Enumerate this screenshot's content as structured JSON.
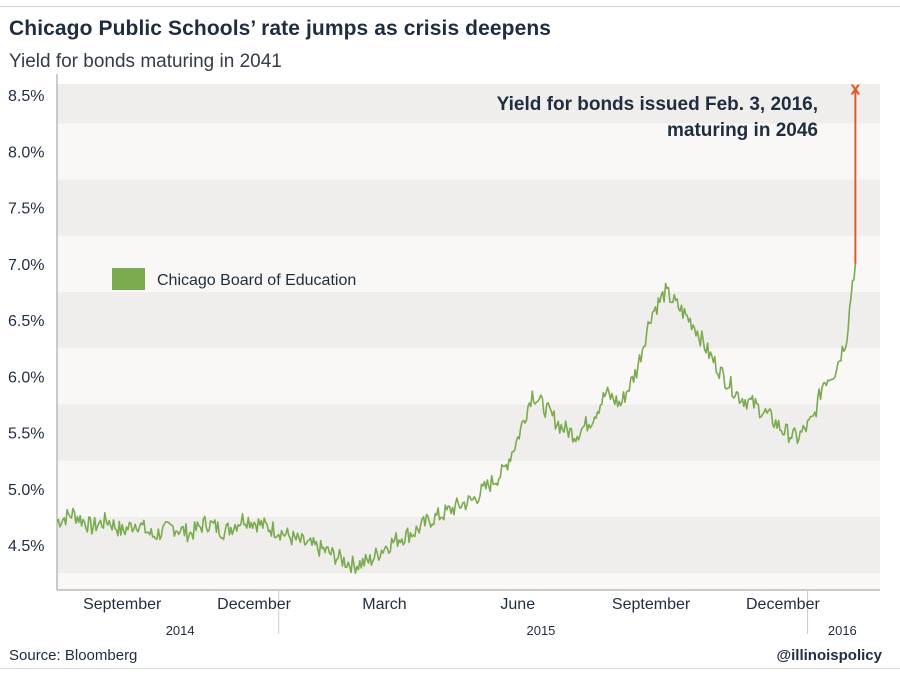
{
  "header": {
    "title": "Chicago Public Schools’ rate jumps as crisis deepens",
    "subtitle": "Yield for bonds maturing in 2041"
  },
  "footer": {
    "source": "Source: Bloomberg",
    "handle": "@illinoispolicy"
  },
  "colors": {
    "series": "#7aab4e",
    "highlight": "#e05a2a",
    "band_dark": "#efeeec",
    "band_light": "#f9f8f6"
  },
  "chart_data": {
    "type": "line",
    "ylim": [
      4.1,
      8.6
    ],
    "y_ticks": [
      "4.5%",
      "5.0%",
      "5.5%",
      "6.0%",
      "6.5%",
      "7.0%",
      "7.5%",
      "8.0%",
      "8.5%"
    ],
    "y_tick_values": [
      4.5,
      5.0,
      5.5,
      6.0,
      6.5,
      7.0,
      7.5,
      8.0,
      8.5
    ],
    "x_domain": [
      "2014-08-01",
      "2016-02-20"
    ],
    "x_ticks": [
      {
        "label": "September",
        "date": "2014-09-15"
      },
      {
        "label": "December",
        "date": "2014-12-15"
      },
      {
        "label": "March",
        "date": "2015-03-15"
      },
      {
        "label": "June",
        "date": "2015-06-15"
      },
      {
        "label": "September",
        "date": "2015-09-15"
      },
      {
        "label": "December",
        "date": "2015-12-15"
      }
    ],
    "year_labels": [
      {
        "label": "2014",
        "date": "2014-10-25"
      },
      {
        "label": "2015",
        "date": "2015-07-01"
      },
      {
        "label": "2016",
        "date": "2016-01-25"
      }
    ],
    "year_dividers": [
      "2015-01-01",
      "2016-01-01"
    ],
    "series": [
      {
        "name": "Chicago Board of Education",
        "points": [
          [
            "2014-08-01",
            4.71
          ],
          [
            "2014-08-12",
            4.78
          ],
          [
            "2014-08-25",
            4.66
          ],
          [
            "2014-09-05",
            4.72
          ],
          [
            "2014-09-15",
            4.62
          ],
          [
            "2014-09-25",
            4.7
          ],
          [
            "2014-10-06",
            4.58
          ],
          [
            "2014-10-20",
            4.66
          ],
          [
            "2014-11-01",
            4.6
          ],
          [
            "2014-11-12",
            4.7
          ],
          [
            "2014-11-25",
            4.62
          ],
          [
            "2014-12-08",
            4.74
          ],
          [
            "2014-12-20",
            4.68
          ],
          [
            "2015-01-02",
            4.62
          ],
          [
            "2015-01-12",
            4.55
          ],
          [
            "2015-01-22",
            4.5
          ],
          [
            "2015-02-02",
            4.45
          ],
          [
            "2015-02-12",
            4.38
          ],
          [
            "2015-02-22",
            4.32
          ],
          [
            "2015-03-05",
            4.36
          ],
          [
            "2015-03-15",
            4.48
          ],
          [
            "2015-03-25",
            4.56
          ],
          [
            "2015-04-05",
            4.62
          ],
          [
            "2015-04-15",
            4.72
          ],
          [
            "2015-04-25",
            4.78
          ],
          [
            "2015-05-05",
            4.85
          ],
          [
            "2015-05-15",
            4.9
          ],
          [
            "2015-05-25",
            5.02
          ],
          [
            "2015-06-05",
            5.15
          ],
          [
            "2015-06-15",
            5.45
          ],
          [
            "2015-06-25",
            5.85
          ],
          [
            "2015-07-05",
            5.7
          ],
          [
            "2015-07-15",
            5.55
          ],
          [
            "2015-07-25",
            5.48
          ],
          [
            "2015-08-05",
            5.62
          ],
          [
            "2015-08-15",
            5.85
          ],
          [
            "2015-08-25",
            5.75
          ],
          [
            "2015-09-05",
            6.05
          ],
          [
            "2015-09-15",
            6.55
          ],
          [
            "2015-09-25",
            6.75
          ],
          [
            "2015-10-05",
            6.6
          ],
          [
            "2015-10-15",
            6.45
          ],
          [
            "2015-10-25",
            6.2
          ],
          [
            "2015-11-05",
            5.98
          ],
          [
            "2015-11-15",
            5.82
          ],
          [
            "2015-11-25",
            5.75
          ],
          [
            "2015-12-05",
            5.65
          ],
          [
            "2015-12-15",
            5.52
          ],
          [
            "2015-12-25",
            5.45
          ],
          [
            "2016-01-05",
            5.62
          ],
          [
            "2016-01-12",
            5.95
          ],
          [
            "2016-01-20",
            6.05
          ],
          [
            "2016-01-28",
            6.35
          ],
          [
            "2016-02-01",
            6.85
          ],
          [
            "2016-02-03",
            7.0
          ]
        ]
      },
      {
        "name": "Yield for bonds issued Feb. 3, 2016, maturing in 2046",
        "points": [
          [
            "2016-02-03",
            7.0
          ],
          [
            "2016-02-03",
            8.55
          ]
        ]
      }
    ],
    "annotation": {
      "lines": [
        "Yield for bonds issued Feb. 3, 2016,",
        "maturing in 2046"
      ],
      "marker": "x"
    },
    "legend": {
      "label": "Chicago Board of Education",
      "placement": "left"
    },
    "bands": "alternating"
  }
}
